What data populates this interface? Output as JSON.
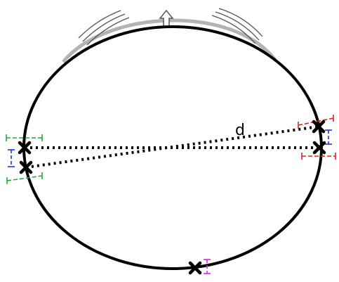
{
  "diagram": {
    "distance_label": "d",
    "up_arrow_icon": "hollow-up-arrow-icon",
    "marker_icon": "x-mark-icon",
    "colors": {
      "outline": "#000000",
      "ghost_outline": "#b3b3b3",
      "bracket_green": "#22aa33",
      "bracket_blue": "#2233cc",
      "bracket_red": "#dd2222",
      "bracket_magenta": "#dd22dd"
    }
  }
}
